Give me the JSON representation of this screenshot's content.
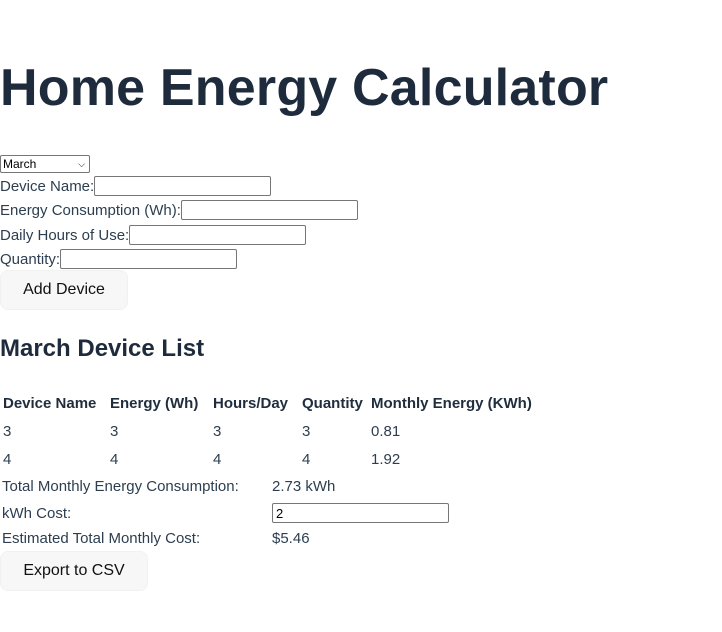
{
  "header": {
    "title": "Home Energy Calculator"
  },
  "month_select": {
    "selected": "March",
    "icon": "chevron-down-icon"
  },
  "form": {
    "device_name_label": "Device Name:",
    "device_name_value": "",
    "energy_label": "Energy Consumption (Wh):",
    "energy_value": "",
    "hours_label": "Daily Hours of Use:",
    "hours_value": "",
    "quantity_label": "Quantity:",
    "quantity_value": "",
    "add_button_label": "Add Device"
  },
  "device_list": {
    "title": "March Device List",
    "columns": [
      "Device Name",
      "Energy (Wh)",
      "Hours/Day",
      "Quantity",
      "Monthly Energy (KWh)"
    ],
    "rows": [
      [
        "3",
        "3",
        "3",
        "3",
        "0.81"
      ],
      [
        "4",
        "4",
        "4",
        "4",
        "1.92"
      ]
    ]
  },
  "summary": {
    "total_label": "Total Monthly Energy Consumption:",
    "total_value": "2.73 kWh",
    "cost_label": "kWh Cost:",
    "cost_value": "2",
    "estimated_label": "Estimated Total Monthly Cost:",
    "estimated_value": "$5.46"
  },
  "export": {
    "button_label": "Export to CSV"
  }
}
